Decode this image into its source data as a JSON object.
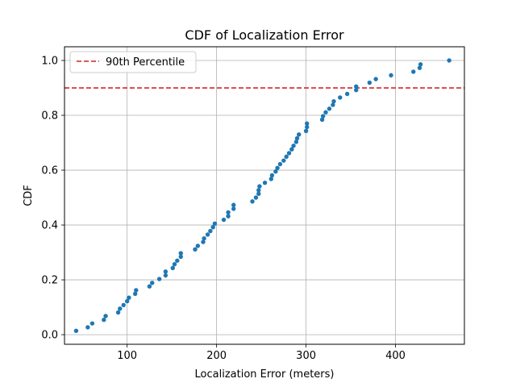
{
  "chart_data": {
    "type": "scatter",
    "title": "CDF of Localization Error",
    "xlabel": "Localization Error (meters)",
    "ylabel": "CDF",
    "xlim": [
      30,
      477
    ],
    "ylim": [
      -0.035,
      1.05
    ],
    "xticks": [
      100,
      200,
      300,
      400
    ],
    "yticks": [
      0.0,
      0.2,
      0.4,
      0.6,
      0.8,
      1.0
    ],
    "xtick_labels": [
      "100",
      "200",
      "300",
      "400"
    ],
    "ytick_labels": [
      "0.0",
      "0.2",
      "0.4",
      "0.6",
      "0.8",
      "1.0"
    ],
    "grid": true,
    "legend_position": "upper-left",
    "point_color": "#1f77b4",
    "reference_line": {
      "label": "90th Percentile",
      "y": 0.9,
      "color": "#d62728",
      "style": "dashed"
    },
    "points": [
      [
        43,
        0.014
      ],
      [
        56,
        0.027
      ],
      [
        61,
        0.041
      ],
      [
        74,
        0.054
      ],
      [
        76,
        0.068
      ],
      [
        90,
        0.081
      ],
      [
        92,
        0.095
      ],
      [
        96,
        0.108
      ],
      [
        100,
        0.122
      ],
      [
        102,
        0.135
      ],
      [
        109,
        0.149
      ],
      [
        110,
        0.162
      ],
      [
        125,
        0.176
      ],
      [
        128,
        0.189
      ],
      [
        136,
        0.203
      ],
      [
        143,
        0.216
      ],
      [
        143,
        0.23
      ],
      [
        151,
        0.243
      ],
      [
        153,
        0.257
      ],
      [
        156,
        0.27
      ],
      [
        160,
        0.284
      ],
      [
        160,
        0.297
      ],
      [
        176,
        0.311
      ],
      [
        179,
        0.324
      ],
      [
        185,
        0.338
      ],
      [
        186,
        0.351
      ],
      [
        190,
        0.365
      ],
      [
        193,
        0.378
      ],
      [
        196,
        0.392
      ],
      [
        198,
        0.405
      ],
      [
        208,
        0.419
      ],
      [
        213,
        0.432
      ],
      [
        213,
        0.446
      ],
      [
        219,
        0.459
      ],
      [
        219,
        0.473
      ],
      [
        240,
        0.486
      ],
      [
        244,
        0.5
      ],
      [
        247,
        0.514
      ],
      [
        247,
        0.527
      ],
      [
        248,
        0.541
      ],
      [
        254,
        0.554
      ],
      [
        261,
        0.568
      ],
      [
        262,
        0.581
      ],
      [
        266,
        0.595
      ],
      [
        268,
        0.608
      ],
      [
        271,
        0.622
      ],
      [
        275,
        0.635
      ],
      [
        278,
        0.649
      ],
      [
        281,
        0.662
      ],
      [
        284,
        0.676
      ],
      [
        286,
        0.689
      ],
      [
        289,
        0.703
      ],
      [
        290,
        0.716
      ],
      [
        292,
        0.73
      ],
      [
        300,
        0.743
      ],
      [
        301,
        0.757
      ],
      [
        301,
        0.77
      ],
      [
        318,
        0.784
      ],
      [
        319,
        0.797
      ],
      [
        322,
        0.811
      ],
      [
        326,
        0.824
      ],
      [
        330,
        0.838
      ],
      [
        331,
        0.851
      ],
      [
        338,
        0.865
      ],
      [
        346,
        0.878
      ],
      [
        356,
        0.892
      ],
      [
        356,
        0.905
      ],
      [
        371,
        0.919
      ],
      [
        378,
        0.932
      ],
      [
        395,
        0.946
      ],
      [
        420,
        0.959
      ],
      [
        427,
        0.973
      ],
      [
        428,
        0.986
      ],
      [
        460,
        1.0
      ]
    ]
  }
}
